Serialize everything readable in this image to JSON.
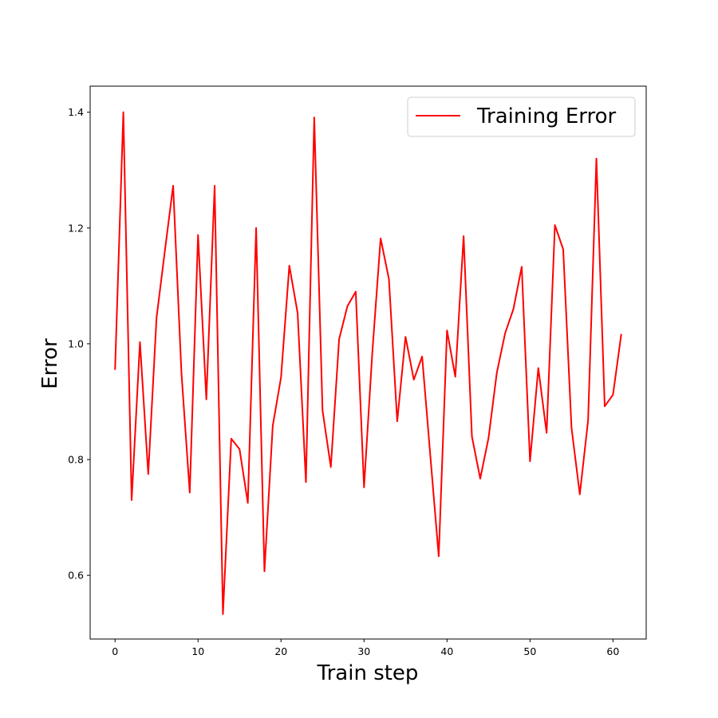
{
  "chart_data": {
    "type": "line",
    "xlabel": "Train step",
    "ylabel": "Error",
    "xlim": [
      -3,
      64
    ],
    "ylim": [
      0.49,
      1.445
    ],
    "xticks": [
      0,
      10,
      20,
      30,
      40,
      50,
      60
    ],
    "yticks": [
      0.6,
      0.8,
      1.0,
      1.2,
      1.4
    ],
    "ytick_labels": [
      "0.6",
      "0.8",
      "1.0",
      "1.2",
      "1.4"
    ],
    "grid": false,
    "legend": {
      "position": "top-right"
    },
    "series": [
      {
        "name": "Training Error",
        "color": "#ff0000",
        "x": [
          0,
          1,
          2,
          3,
          4,
          5,
          6,
          7,
          8,
          9,
          10,
          11,
          12,
          13,
          14,
          15,
          16,
          17,
          18,
          19,
          20,
          21,
          22,
          23,
          24,
          25,
          26,
          27,
          28,
          29,
          30,
          31,
          32,
          33,
          34,
          35,
          36,
          37,
          38,
          39,
          40,
          41,
          42,
          43,
          44,
          45,
          46,
          47,
          48,
          49,
          50,
          51,
          52,
          53,
          54,
          55,
          56,
          57,
          58,
          59,
          60,
          61
        ],
        "y": [
          0.955,
          1.4,
          0.73,
          1.003,
          0.775,
          1.045,
          1.16,
          1.273,
          0.95,
          0.743,
          1.188,
          0.904,
          1.273,
          0.533,
          0.836,
          0.818,
          0.725,
          1.2,
          0.607,
          0.858,
          0.942,
          1.135,
          1.053,
          0.761,
          1.391,
          0.885,
          0.787,
          1.008,
          1.065,
          1.09,
          0.752,
          0.985,
          1.182,
          1.112,
          0.866,
          1.012,
          0.938,
          0.978,
          0.805,
          0.633,
          1.023,
          0.943,
          1.186,
          0.84,
          0.767,
          0.837,
          0.95,
          1.018,
          1.06,
          1.133,
          0.797,
          0.958,
          0.846,
          1.205,
          1.163,
          0.855,
          0.74,
          0.868,
          1.32,
          0.892,
          0.912,
          1.017
        ]
      }
    ]
  }
}
